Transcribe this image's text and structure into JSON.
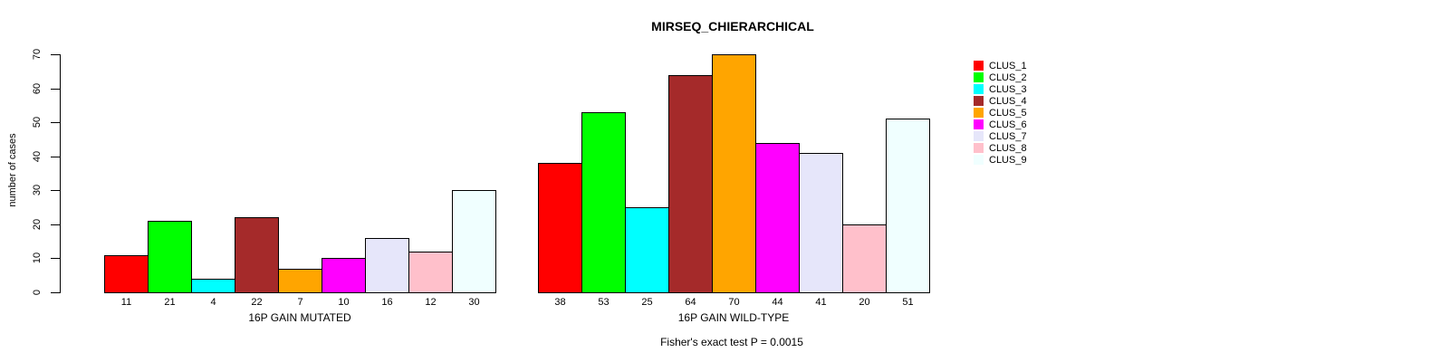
{
  "chart_data": {
    "type": "bar",
    "title": "MIRSEQ_CHIERARCHICAL",
    "ylabel": "number of cases",
    "ylim": [
      0,
      70
    ],
    "yticks": [
      0,
      10,
      20,
      30,
      40,
      50,
      60,
      70
    ],
    "grid": false,
    "legend_position": "top-right",
    "categories": [
      "16P GAIN MUTATED",
      "16P GAIN WILD-TYPE"
    ],
    "series": [
      {
        "name": "CLUS_1",
        "color": "#ff0000",
        "values": [
          11,
          38
        ]
      },
      {
        "name": "CLUS_2",
        "color": "#00ff00",
        "values": [
          21,
          53
        ]
      },
      {
        "name": "CLUS_3",
        "color": "#00ffff",
        "values": [
          4,
          25
        ]
      },
      {
        "name": "CLUS_4",
        "color": "#a52a2a",
        "values": [
          22,
          64
        ]
      },
      {
        "name": "CLUS_5",
        "color": "#ffa500",
        "values": [
          7,
          70
        ]
      },
      {
        "name": "CLUS_6",
        "color": "#ff00ff",
        "values": [
          10,
          44
        ]
      },
      {
        "name": "CLUS_7",
        "color": "#e6e6fa",
        "values": [
          16,
          41
        ]
      },
      {
        "name": "CLUS_8",
        "color": "#ffc0cb",
        "values": [
          12,
          20
        ]
      },
      {
        "name": "CLUS_9",
        "color": "#f0ffff",
        "values": [
          30,
          51
        ]
      }
    ],
    "annotation": "Fisher's exact test P = 0.0015"
  }
}
